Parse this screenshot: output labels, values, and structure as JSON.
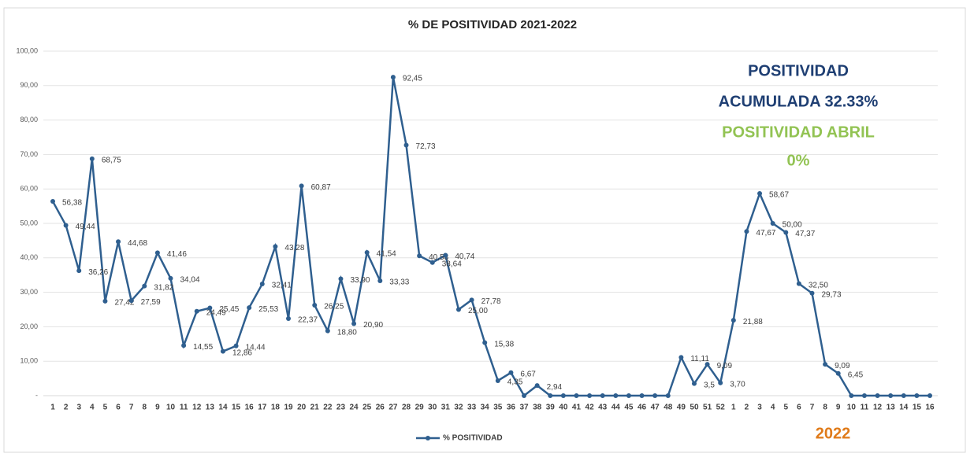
{
  "chart_data": {
    "type": "line",
    "title": "% DE POSITIVIDAD 2021-2022",
    "categories": [
      1,
      2,
      3,
      4,
      5,
      6,
      7,
      8,
      9,
      10,
      11,
      12,
      13,
      14,
      15,
      16,
      17,
      18,
      19,
      20,
      21,
      22,
      23,
      24,
      25,
      26,
      27,
      28,
      29,
      30,
      31,
      32,
      33,
      34,
      35,
      36,
      37,
      38,
      39,
      40,
      41,
      42,
      43,
      44,
      45,
      46,
      47,
      48,
      49,
      50,
      51,
      52,
      1,
      2,
      3,
      4,
      5,
      6,
      7,
      8,
      9,
      10,
      11,
      12,
      13,
      14,
      15,
      16
    ],
    "series": [
      {
        "name": "% POSITIVIDAD",
        "color": "#2f5f8f",
        "values": [
          56.38,
          49.44,
          36.26,
          68.75,
          27.42,
          44.68,
          27.59,
          31.82,
          41.46,
          34.04,
          14.55,
          24.49,
          25.45,
          12.86,
          14.44,
          25.53,
          32.41,
          43.28,
          22.37,
          60.87,
          26.25,
          18.8,
          33.9,
          20.9,
          41.54,
          33.33,
          92.45,
          72.73,
          40.58,
          38.64,
          40.74,
          25,
          27.78,
          15.38,
          4.35,
          6.67,
          0,
          2.94,
          0,
          0,
          0,
          0,
          0,
          0,
          0,
          0,
          0,
          0,
          11.11,
          3.5,
          9.09,
          3.7,
          21.88,
          47.67,
          58.67,
          50,
          47.37,
          32.5,
          29.73,
          9.09,
          6.45,
          0,
          0,
          0,
          0,
          0,
          0,
          0
        ],
        "value_labels": [
          "56,38",
          "49,44",
          "36,26",
          "68,75",
          "27,42",
          "44,68",
          "27,59",
          "31,82",
          "41,46",
          "34,04",
          "14,55",
          "24,49",
          "25,45",
          "12,86",
          "14,44",
          "25,53",
          "32,41",
          "43,28",
          "22,37",
          "60,87",
          "26,25",
          "18,80",
          "33,90",
          "20,90",
          "41,54",
          "33,33",
          "92,45",
          "72,73",
          "40,58",
          "38,64",
          "40,74",
          "25,00",
          "27,78",
          "15,38",
          "4,35",
          "6,67",
          null,
          "2,94",
          null,
          null,
          null,
          null,
          null,
          null,
          null,
          null,
          null,
          null,
          "11,11",
          "3,5",
          "9,09",
          "3,70",
          "21,88",
          "47,67",
          "58,67",
          "50,00",
          "47,37",
          "32,50",
          "29,73",
          "9,09",
          "6,45",
          null,
          null,
          null,
          null,
          null,
          null,
          null
        ]
      }
    ],
    "ylim": [
      0,
      100
    ],
    "yticks": [
      {
        "value": 0,
        "label": "-"
      },
      {
        "value": 10,
        "label": "10,00"
      },
      {
        "value": 20,
        "label": "20,00"
      },
      {
        "value": 30,
        "label": "30,00"
      },
      {
        "value": 40,
        "label": "40,00"
      },
      {
        "value": 50,
        "label": "50,00"
      },
      {
        "value": 60,
        "label": "60,00"
      },
      {
        "value": 70,
        "label": "70,00"
      },
      {
        "value": 80,
        "label": "80,00"
      },
      {
        "value": 90,
        "label": "90,00"
      },
      {
        "value": 100,
        "label": "100,00"
      }
    ],
    "grid": true,
    "legend": "bottom",
    "annotations": [
      {
        "text": "POSITIVIDAD",
        "color": "#1f3f73"
      },
      {
        "text": "ACUMULADA 32.33%",
        "color": "#1f3f73"
      },
      {
        "text": "POSITIVIDAD ABRIL",
        "color": "#92c353"
      },
      {
        "text": "0%",
        "color": "#92c353"
      },
      {
        "text": "2022",
        "color": "#e07b1a"
      }
    ]
  }
}
